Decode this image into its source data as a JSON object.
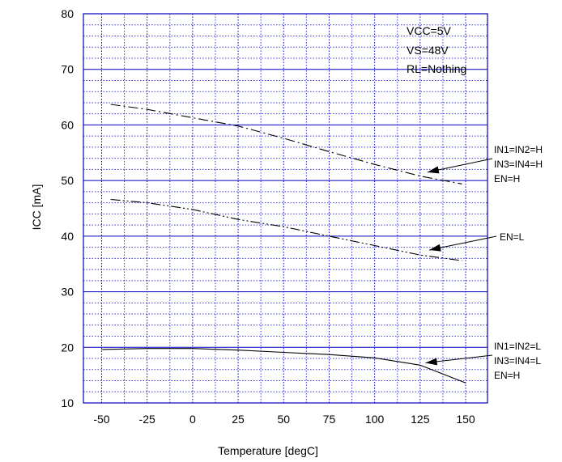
{
  "chart_data": {
    "type": "line",
    "title": "",
    "xlabel": "Temperature [degC]",
    "ylabel": "ICC [mA]",
    "xlim": [
      -60,
      162
    ],
    "ylim": [
      10,
      80
    ],
    "xticks": [
      -50,
      -25,
      0,
      25,
      50,
      75,
      100,
      125,
      150
    ],
    "yticks": [
      10,
      20,
      30,
      40,
      50,
      60,
      70,
      80
    ],
    "grid": true,
    "colors": {
      "major_grid": "#0000c0",
      "minor_grid": "#3a3ad8",
      "series": "#000000"
    },
    "conditions": [
      "VCC=5V",
      "VS=48V",
      "RL=Nothing"
    ],
    "series": [
      {
        "name": "IN1=IN2=H IN3=IN4=H EN=H",
        "style": "dashdot",
        "x": [
          -45,
          -25,
          0,
          25,
          50,
          75,
          100,
          125,
          148
        ],
        "y": [
          63.7,
          62.8,
          61.3,
          59.8,
          57.6,
          55.2,
          52.9,
          50.8,
          49.4
        ]
      },
      {
        "name": "EN=L",
        "style": "dashdotdot",
        "x": [
          -45,
          -25,
          0,
          25,
          50,
          75,
          100,
          125,
          148
        ],
        "y": [
          46.6,
          46.0,
          44.8,
          43.0,
          41.7,
          40.0,
          38.3,
          36.6,
          35.6
        ]
      },
      {
        "name": "IN1=IN2=L IN3=IN4=L EN=H",
        "style": "solid",
        "x": [
          -50,
          -25,
          0,
          25,
          50,
          75,
          100,
          125,
          150
        ],
        "y": [
          19.6,
          19.8,
          19.8,
          19.5,
          19.1,
          18.7,
          18.1,
          16.8,
          13.6
        ]
      }
    ],
    "annotations": [
      {
        "lines": [
          "IN1=IN2=H",
          "IN3=IN4=H",
          "EN=H"
        ],
        "points_to": [
          129,
          51.5
        ]
      },
      {
        "lines": [
          "EN=L"
        ],
        "points_to": [
          130,
          37.5
        ]
      },
      {
        "lines": [
          "IN1=IN2=L",
          "IN3=IN4=L",
          "EN=H"
        ],
        "points_to": [
          128,
          17.2
        ]
      }
    ]
  }
}
